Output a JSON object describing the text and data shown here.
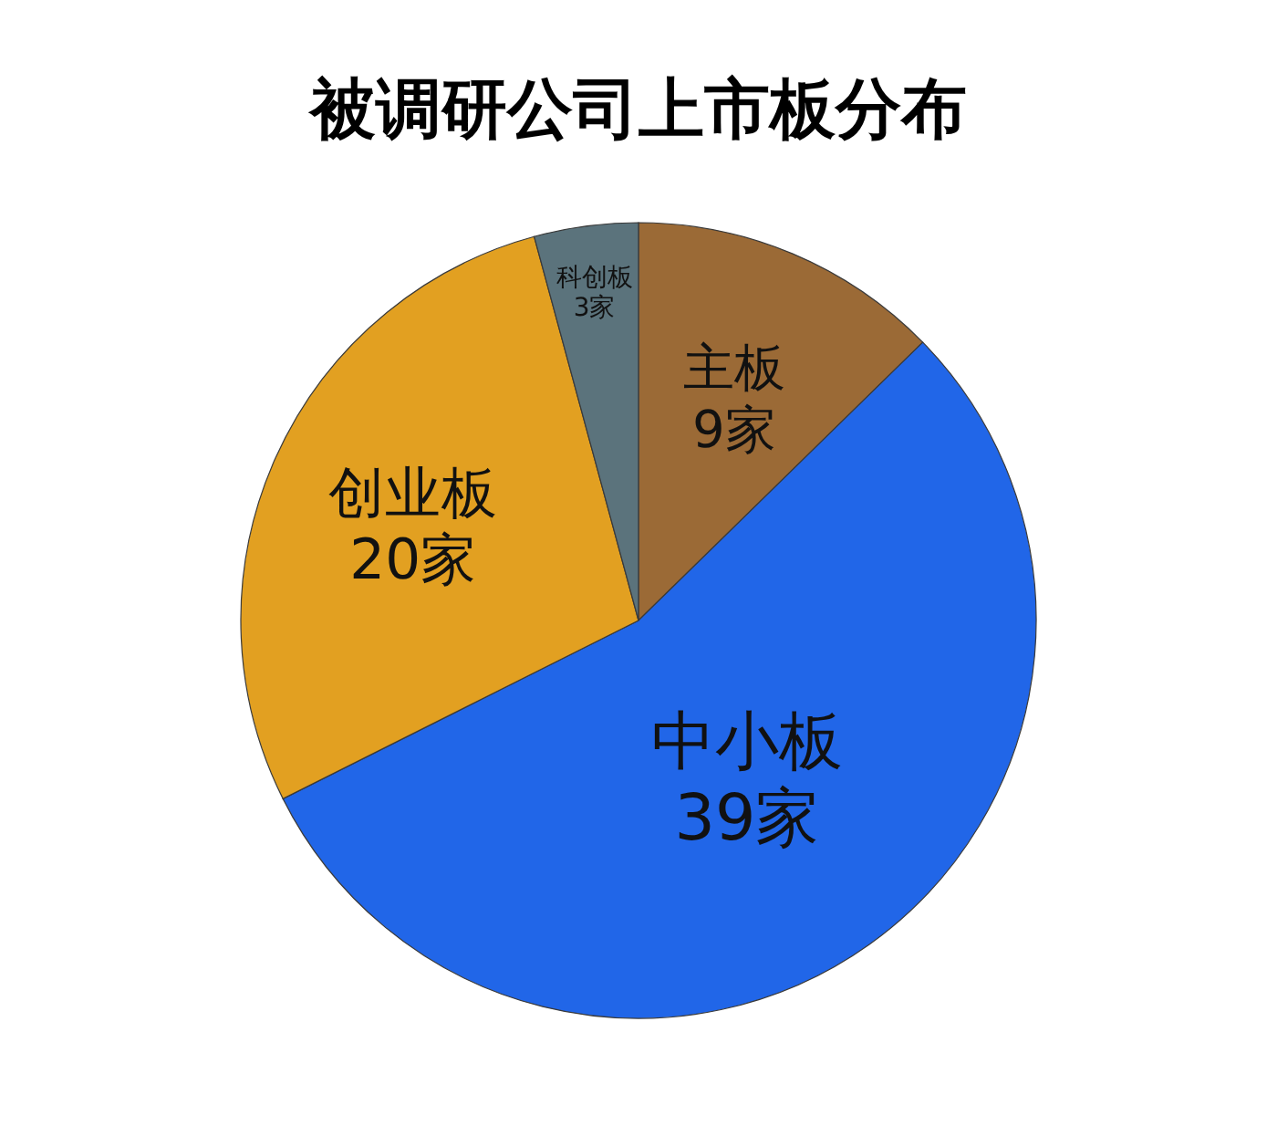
{
  "chart_data": {
    "type": "pie",
    "title": "被调研公司上市板分布",
    "categories": [
      "主板",
      "中小板",
      "创业板",
      "科创板"
    ],
    "values": [
      9,
      39,
      20,
      3
    ],
    "value_labels": [
      "9家",
      "39家",
      "20家",
      "3家"
    ],
    "colors": [
      "#9b6a36",
      "#2166e8",
      "#e2a021",
      "#5b737c"
    ],
    "legend": false
  }
}
